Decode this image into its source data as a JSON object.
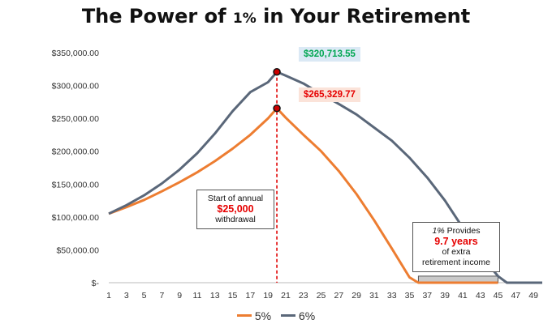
{
  "chart_data": {
    "type": "line",
    "title_main": "The Power of ",
    "title_pct": "1%",
    "title_rest": " in Your Retirement",
    "xlabel": "",
    "ylabel": "",
    "xlim": [
      1,
      50
    ],
    "ylim": [
      0,
      350000
    ],
    "grid": false,
    "legend_position": "bottom",
    "y_ticks": [
      "$-",
      "$50,000.00",
      "$100,000.00",
      "$150,000.00",
      "$200,000.00",
      "$250,000.00",
      "$300,000.00",
      "$350,000.00"
    ],
    "y_tick_values": [
      0,
      50000,
      100000,
      150000,
      200000,
      250000,
      300000,
      350000
    ],
    "x_ticks": [
      1,
      3,
      5,
      7,
      9,
      11,
      13,
      15,
      17,
      19,
      21,
      23,
      25,
      27,
      29,
      31,
      33,
      35,
      37,
      39,
      41,
      43,
      45,
      47,
      49
    ],
    "series": [
      {
        "name": "5%",
        "color": "#ed7d31",
        "points": [
          [
            1,
            105000
          ],
          [
            3,
            115000
          ],
          [
            5,
            126000
          ],
          [
            7,
            139000
          ],
          [
            9,
            153000
          ],
          [
            11,
            168000
          ],
          [
            13,
            185000
          ],
          [
            15,
            204000
          ],
          [
            17,
            225000
          ],
          [
            19,
            250000
          ],
          [
            20,
            265329.77
          ],
          [
            21,
            251000
          ],
          [
            23,
            225000
          ],
          [
            25,
            200000
          ],
          [
            27,
            170000
          ],
          [
            29,
            135000
          ],
          [
            31,
            95000
          ],
          [
            33,
            52000
          ],
          [
            35,
            8000
          ],
          [
            36,
            0
          ],
          [
            45,
            0
          ]
        ]
      },
      {
        "name": "6%",
        "color": "#5a6779",
        "points": [
          [
            1,
            105000
          ],
          [
            3,
            118000
          ],
          [
            5,
            133000
          ],
          [
            7,
            151000
          ],
          [
            9,
            172000
          ],
          [
            11,
            197000
          ],
          [
            13,
            227000
          ],
          [
            15,
            261000
          ],
          [
            17,
            290000
          ],
          [
            19,
            305000
          ],
          [
            20,
            320713.55
          ],
          [
            21,
            315000
          ],
          [
            23,
            303000
          ],
          [
            25,
            287000
          ],
          [
            27,
            272000
          ],
          [
            29,
            256000
          ],
          [
            31,
            236000
          ],
          [
            33,
            216000
          ],
          [
            35,
            190000
          ],
          [
            37,
            160000
          ],
          [
            39,
            125000
          ],
          [
            41,
            84000
          ],
          [
            43,
            42000
          ],
          [
            45,
            10000
          ],
          [
            46,
            0
          ],
          [
            50,
            0
          ]
        ]
      }
    ],
    "peak_5": "$265,329.77",
    "peak_6": "$320,713.55",
    "withdraw_line_x": 20,
    "gap_region": {
      "x_start": 36,
      "x_end": 45,
      "value": 10000
    },
    "annotation_withdrawal": {
      "line1": "Start of annual",
      "amount": "$25,000",
      "line3": "withdrawal"
    },
    "annotation_extra": {
      "line1a": "1%",
      "line1b": " Provides",
      "years": "9.7 years",
      "line3": "of extra",
      "line4": "retirement income"
    },
    "colors": {
      "five": "#ed7d31",
      "six": "#5a6779",
      "marker": "#cc0000",
      "peak6_bg": "#dbe9f5",
      "peak5_bg": "#fbe3d9",
      "peak6_text": "#00a651",
      "peak5_text": "#e60000"
    }
  }
}
